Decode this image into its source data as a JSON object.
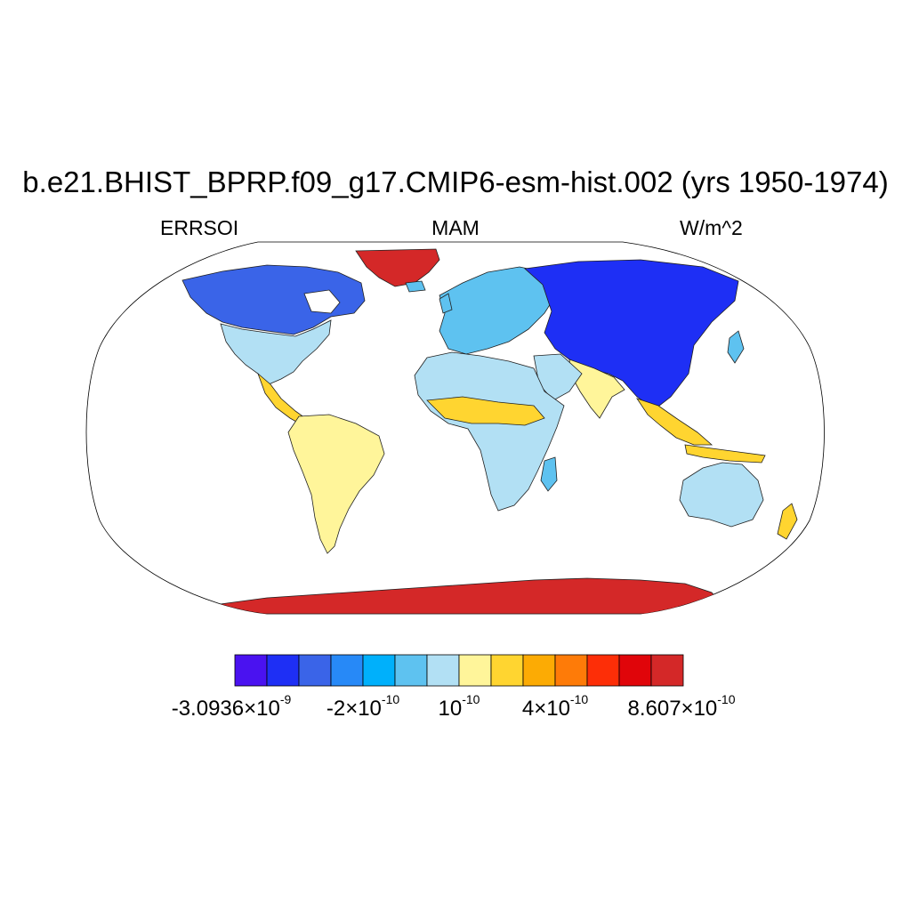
{
  "header": {
    "title": "b.e21.BHIST_BPRP.f09_g17.CMIP6-esm-hist.002 (yrs 1950-1974)",
    "variable": "ERRSOI",
    "season": "MAM",
    "units": "W/m^2"
  },
  "map": {
    "projection": "Robinson",
    "colors": {
      "ocean": "#ffffff",
      "coastline": "#000000"
    }
  },
  "colorbar": {
    "colors": [
      "#4a12f0",
      "#1e2ff5",
      "#3a64e8",
      "#2789f7",
      "#00b0fb",
      "#5ec2f0",
      "#b2e0f4",
      "#fff59a",
      "#ffd530",
      "#fcab04",
      "#fe7b08",
      "#fd2e07",
      "#e0050a",
      "#d42828"
    ],
    "labels": [
      {
        "mantissa": "-3.0936",
        "times": "×",
        "base": "10",
        "exp": "-9"
      },
      {
        "mantissa": "-2",
        "times": "×",
        "base": "10",
        "exp": "-10"
      },
      {
        "mantissa": "",
        "times": "",
        "base": "10",
        "exp": "-10"
      },
      {
        "mantissa": "4",
        "times": "×",
        "base": "10",
        "exp": "-10"
      },
      {
        "mantissa": "8.607",
        "times": "×",
        "base": "10",
        "exp": "-10"
      }
    ]
  }
}
